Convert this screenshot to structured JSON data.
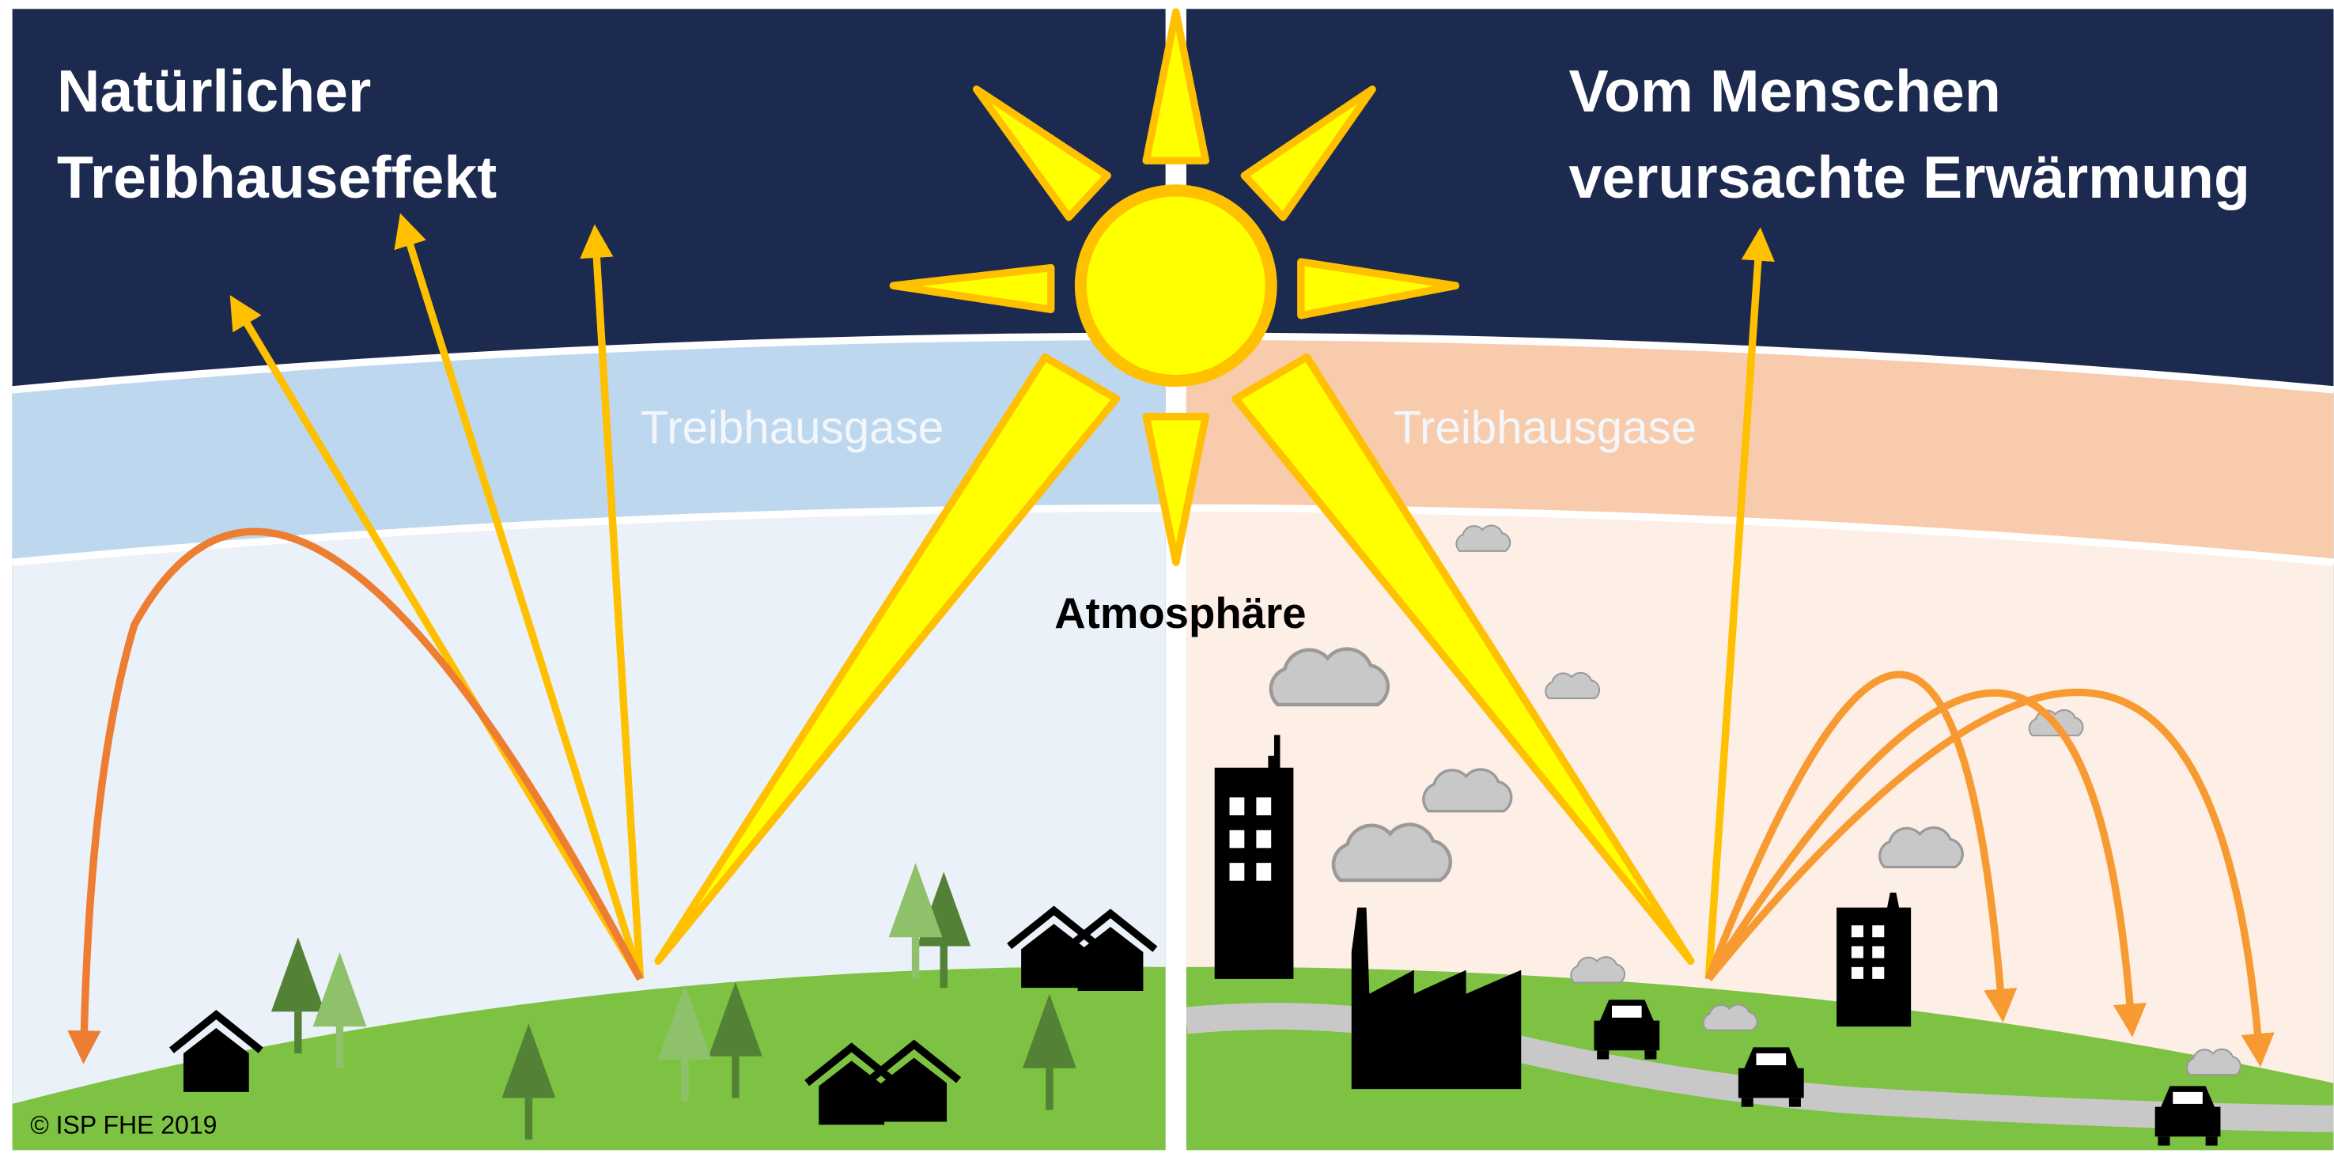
{
  "left": {
    "title": [
      "Natürlicher",
      "Treibhauseffekt"
    ],
    "layer_label": "Treibhausgase"
  },
  "right": {
    "title": [
      "Vom Menschen",
      "verursachte Erwärmung"
    ],
    "layer_label": "Treibhausgase"
  },
  "center_label": "Atmosphäre",
  "copyright": "© ISP FHE 2019"
}
